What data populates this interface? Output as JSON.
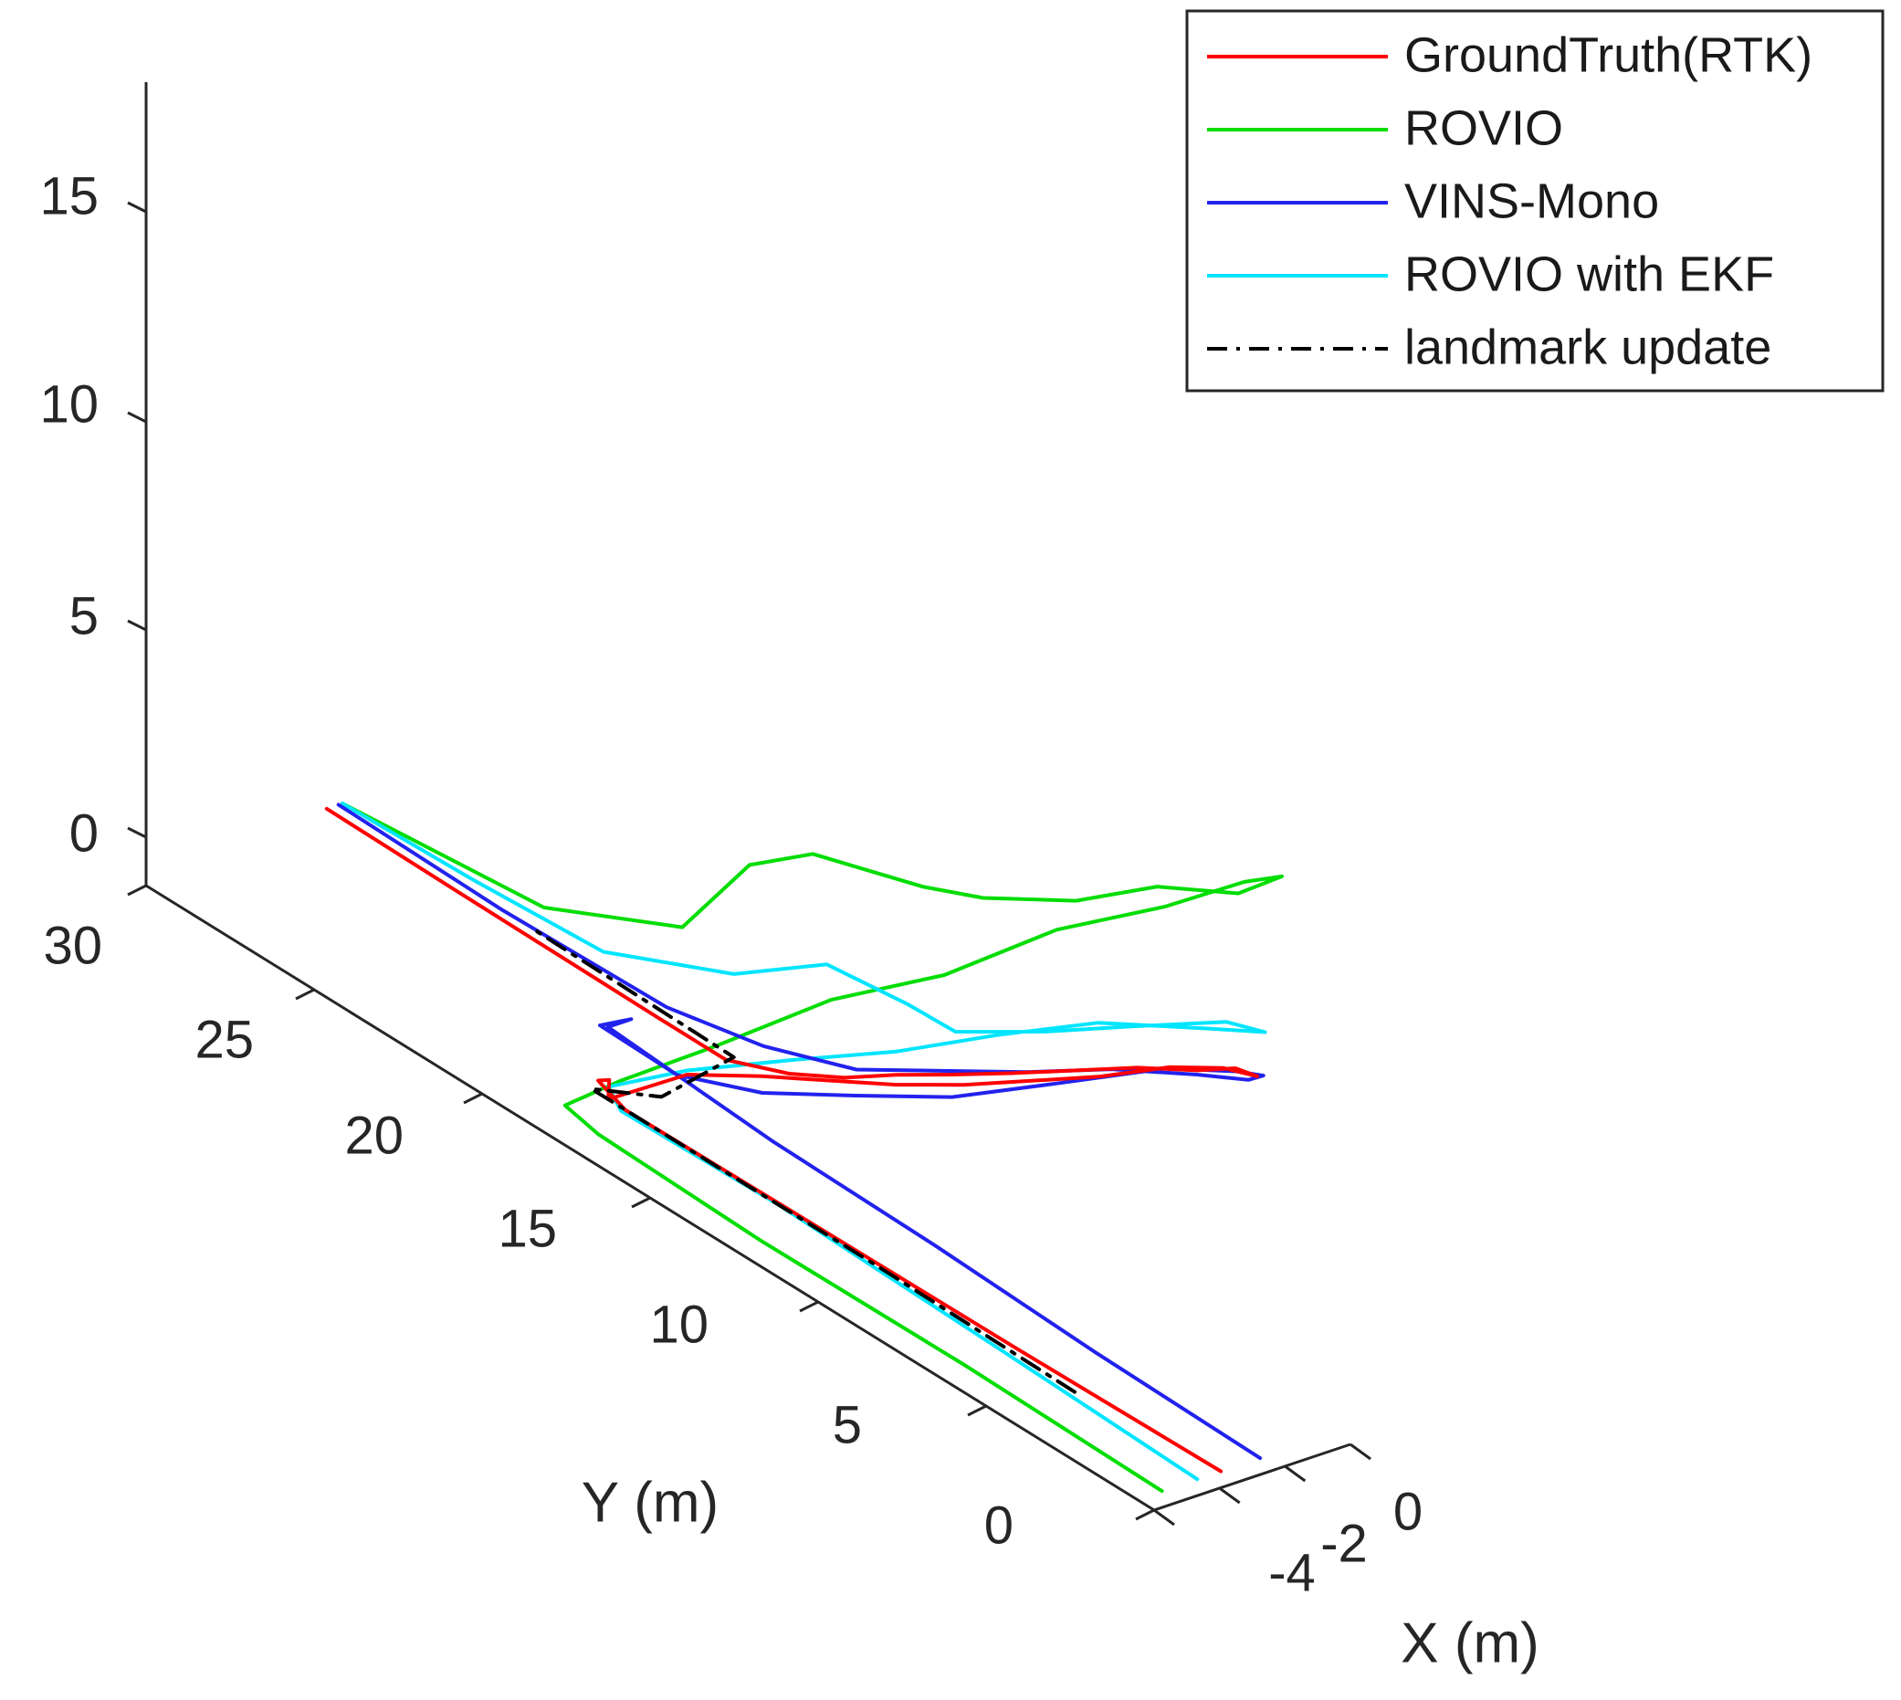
{
  "chart_data": {
    "type": "line",
    "projection": "3d",
    "title": "",
    "xlabel": "X (m)",
    "ylabel": "Y (m)",
    "zlabel": "",
    "xlim": [
      -5,
      0
    ],
    "ylim": [
      0,
      30
    ],
    "zlim": [
      -2,
      18
    ],
    "x_ticks": [
      -4,
      -2,
      0
    ],
    "y_ticks": [
      0,
      5,
      10,
      15,
      20,
      25,
      30
    ],
    "z_ticks": [
      0,
      5,
      10,
      15
    ],
    "grid": false,
    "legend_position": "top-right",
    "colors": {
      "GroundTruth(RTK)": "#ff0000",
      "ROVIO": "#00dd00",
      "VINS-Mono": "#2222ee",
      "ROVIO with EKF": "#00e5ff",
      "landmark update": "#000000"
    },
    "series": [
      {
        "name": "GroundTruth(RTK)",
        "style": "solid",
        "points": [
          [
            -3.3,
            0.0,
            0.0
          ],
          [
            -3.4,
            6.0,
            0.0
          ],
          [
            -3.45,
            12.0,
            0.0
          ],
          [
            -3.5,
            17.5,
            0.0
          ],
          [
            -3.5,
            18.3,
            0.3
          ],
          [
            -3.3,
            18.2,
            0.3
          ],
          [
            -3.5,
            18.0,
            0.0
          ],
          [
            -3.2,
            16.0,
            1.5
          ],
          [
            -3.0,
            14.0,
            2.4
          ],
          [
            -3.0,
            12.0,
            3.3
          ],
          [
            -3.0,
            10.0,
            4.2
          ],
          [
            -3.0,
            8.0,
            5.2
          ],
          [
            -3.0,
            6.0,
            6.3
          ],
          [
            -3.0,
            4.0,
            7.4
          ],
          [
            -2.9,
            2.0,
            8.6
          ],
          [
            -2.8,
            0.5,
            9.3
          ],
          [
            -2.8,
            -0.5,
            9.6
          ],
          [
            -2.5,
            0.5,
            9.2
          ],
          [
            -2.2,
            2.0,
            8.3
          ],
          [
            -2.0,
            4.0,
            7.3
          ],
          [
            -1.9,
            6.0,
            6.2
          ],
          [
            -1.8,
            8.0,
            5.1
          ],
          [
            -1.6,
            10.0,
            4.0
          ],
          [
            -1.3,
            12.0,
            2.9
          ],
          [
            -0.9,
            14.0,
            1.7
          ],
          [
            -0.6,
            16.0,
            0.7
          ],
          [
            -0.5,
            18.0,
            0.0
          ],
          [
            -0.5,
            20.0,
            0.0
          ],
          [
            -0.45,
            26.0,
            0.0
          ],
          [
            -0.4,
            30.0,
            0.0
          ]
        ]
      },
      {
        "name": "ROVIO",
        "style": "solid",
        "points": [
          [
            -4.8,
            0.0,
            0.0
          ],
          [
            -4.7,
            6.0,
            0.0
          ],
          [
            -4.75,
            12.0,
            0.0
          ],
          [
            -4.6,
            17.0,
            0.0
          ],
          [
            -4.6,
            18.0,
            0.2
          ],
          [
            -4.5,
            16.5,
            1.5
          ],
          [
            -4.2,
            14.0,
            3.5
          ],
          [
            -3.8,
            11.0,
            6.0
          ],
          [
            -3.5,
            8.0,
            8.0
          ],
          [
            -3.2,
            5.0,
            10.5
          ],
          [
            -3.0,
            2.0,
            12.5
          ],
          [
            -2.7,
            0.0,
            14.0
          ],
          [
            -2.6,
            -1.0,
            14.6
          ],
          [
            -2.0,
            1.0,
            13.0
          ],
          [
            -1.5,
            4.0,
            11.5
          ],
          [
            -1.0,
            7.0,
            9.5
          ],
          [
            -0.8,
            10.0,
            8.0
          ],
          [
            -0.6,
            12.0,
            7.2
          ],
          [
            -0.3,
            14.0,
            6.5
          ],
          [
            0.0,
            16.0,
            5.8
          ],
          [
            0.1,
            18.0,
            4.5
          ],
          [
            0.1,
            20.0,
            2.0
          ],
          [
            0.0,
            24.0,
            0.5
          ],
          [
            0.0,
            30.0,
            0.0
          ]
        ]
      },
      {
        "name": "VINS-Mono",
        "style": "solid",
        "points": [
          [
            -2.3,
            0.0,
            0.0
          ],
          [
            -2.2,
            5.0,
            0.0
          ],
          [
            -2.0,
            10.0,
            0.0
          ],
          [
            -1.9,
            15.0,
            0.0
          ],
          [
            -1.8,
            20.0,
            0.2
          ],
          [
            -1.2,
            20.0,
            0.2
          ],
          [
            -2.0,
            20.0,
            0.3
          ],
          [
            -2.6,
            17.0,
            0.8
          ],
          [
            -3.0,
            14.0,
            2.0
          ],
          [
            -3.2,
            11.0,
            3.5
          ],
          [
            -3.3,
            8.0,
            5.0
          ],
          [
            -3.2,
            5.0,
            6.8
          ],
          [
            -3.0,
            2.0,
            8.6
          ],
          [
            -2.9,
            0.0,
            9.5
          ],
          [
            -2.9,
            -0.8,
            9.8
          ],
          [
            -2.6,
            0.0,
            9.2
          ],
          [
            -2.2,
            2.0,
            8.2
          ],
          [
            -1.8,
            5.0,
            6.7
          ],
          [
            -1.4,
            8.0,
            5.0
          ],
          [
            -1.0,
            11.0,
            3.4
          ],
          [
            -0.6,
            14.0,
            1.8
          ],
          [
            -0.4,
            17.0,
            0.8
          ],
          [
            -0.3,
            20.0,
            0.2
          ],
          [
            -0.2,
            25.0,
            0.0
          ],
          [
            -0.1,
            30.0,
            0.0
          ]
        ]
      },
      {
        "name": "ROVIO with EKF",
        "style": "solid",
        "points": [
          [
            -3.9,
            0.0,
            0.0
          ],
          [
            -3.7,
            6.0,
            0.0
          ],
          [
            -3.5,
            13.0,
            0.0
          ],
          [
            -3.6,
            17.5,
            0.0
          ],
          [
            -3.5,
            18.0,
            0.3
          ],
          [
            -3.2,
            16.0,
            1.6
          ],
          [
            -3.0,
            13.0,
            3.3
          ],
          [
            -3.0,
            10.0,
            5.0
          ],
          [
            -3.0,
            7.0,
            6.9
          ],
          [
            -3.0,
            4.0,
            8.7
          ],
          [
            -2.8,
            1.0,
            10.0
          ],
          [
            -2.6,
            -0.5,
            10.6
          ],
          [
            -2.3,
            1.0,
            10.0
          ],
          [
            -2.0,
            4.0,
            8.3
          ],
          [
            -1.8,
            7.0,
            6.6
          ],
          [
            -1.5,
            10.0,
            5.0
          ],
          [
            -1.0,
            12.0,
            4.5
          ],
          [
            -0.5,
            15.0,
            3.8
          ],
          [
            -0.3,
            18.0,
            2.0
          ],
          [
            -0.2,
            22.0,
            0.5
          ],
          [
            -0.1,
            26.0,
            0.2
          ],
          [
            0.0,
            30.0,
            0.0
          ]
        ]
      },
      {
        "name": "landmark update",
        "style": "dashdot",
        "points": [
          [
            -3.6,
            4.0,
            0.0
          ],
          [
            -3.5,
            10.0,
            0.0
          ],
          [
            -3.5,
            15.0,
            0.0
          ],
          [
            -3.5,
            18.5,
            0.0
          ],
          [
            -3.0,
            17.0,
            0.4
          ],
          [
            -0.3,
            18.0,
            0.0
          ],
          [
            -0.2,
            24.0,
            0.0
          ]
        ]
      }
    ]
  }
}
